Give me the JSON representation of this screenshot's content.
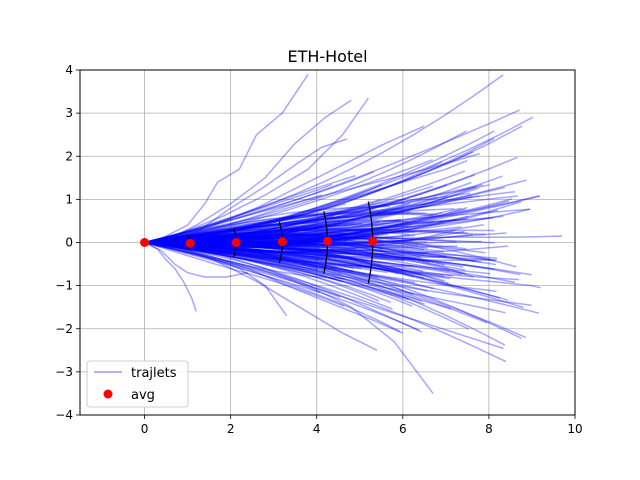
{
  "chart_data": {
    "type": "line",
    "title": "ETH-Hotel",
    "xlabel": "",
    "ylabel": "",
    "xlim": [
      -1.5,
      10
    ],
    "ylim": [
      -4,
      4
    ],
    "xticks": [
      0,
      2,
      4,
      6,
      8,
      10
    ],
    "yticks": [
      -4,
      -3,
      -2,
      -1,
      0,
      1,
      2,
      3,
      4
    ],
    "grid": true,
    "legend": {
      "placement": "lower-left",
      "entries": [
        {
          "label": "trajlets",
          "kind": "line",
          "color": "#0000ff"
        },
        {
          "label": "avg",
          "kind": "marker",
          "color": "#ff0000"
        }
      ]
    },
    "colors": {
      "trajlets": "#0000ff",
      "avg": "#ff0000",
      "arcs": "#000000",
      "grid": "#b0b0b0"
    },
    "avg_points": [
      {
        "x": 0.0,
        "y": 0.0
      },
      {
        "x": 1.06,
        "y": -0.02
      },
      {
        "x": 2.13,
        "y": 0.0
      },
      {
        "x": 3.2,
        "y": 0.02
      },
      {
        "x": 4.25,
        "y": 0.03
      },
      {
        "x": 5.3,
        "y": 0.03
      }
    ],
    "spread_arcs": [
      {
        "x": 1.06,
        "half_width": 0.15
      },
      {
        "x": 2.13,
        "half_width": 0.33
      },
      {
        "x": 3.2,
        "half_width": 0.48
      },
      {
        "x": 4.25,
        "half_width": 0.72
      },
      {
        "x": 5.3,
        "half_width": 0.95
      }
    ],
    "series": [
      {
        "name": "trajlets",
        "x": [
          0,
          0.4,
          1.0,
          1.4,
          1.7,
          2.2,
          2.6,
          3.2,
          3.8
        ],
        "y": [
          0,
          0.1,
          0.4,
          0.9,
          1.4,
          1.7,
          2.5,
          3.0,
          3.9
        ]
      },
      {
        "name": "trajlets",
        "x": [
          0,
          0.6,
          1.2,
          2.0,
          2.8,
          3.5,
          4.2,
          4.8
        ],
        "y": [
          0,
          0.1,
          0.4,
          0.9,
          1.5,
          2.3,
          2.9,
          3.3
        ]
      },
      {
        "name": "trajlets",
        "x": [
          0,
          0.6,
          1.3,
          2.0,
          2.8,
          3.5,
          4.1,
          4.7
        ],
        "y": [
          0,
          0.1,
          0.3,
          0.8,
          1.3,
          1.8,
          2.2,
          2.4
        ]
      },
      {
        "name": "trajlets",
        "x": [
          0,
          0.8,
          1.6,
          2.6,
          3.6,
          4.6,
          5.6,
          6.5
        ],
        "y": [
          0,
          0.1,
          0.4,
          0.8,
          1.3,
          1.8,
          2.3,
          2.7
        ]
      },
      {
        "name": "trajlets",
        "x": [
          0,
          0.8,
          1.8,
          2.8,
          3.8,
          4.6,
          5.2
        ],
        "y": [
          0,
          0.2,
          0.6,
          1.1,
          1.7,
          2.5,
          3.35
        ]
      },
      {
        "name": "trajlets",
        "x": [
          0,
          0.3,
          0.5,
          0.7,
          0.9,
          1.1,
          1.2
        ],
        "y": [
          0,
          -0.15,
          -0.4,
          -0.6,
          -0.9,
          -1.3,
          -1.6
        ]
      },
      {
        "name": "trajlets",
        "x": [
          0,
          0.4,
          0.7,
          1.0,
          1.4,
          1.9,
          2.4
        ],
        "y": [
          0,
          -0.2,
          -0.5,
          -0.7,
          -0.8,
          -0.8,
          -0.7
        ]
      },
      {
        "name": "trajlets",
        "x": [
          0,
          0.8,
          1.6,
          2.6,
          3.6,
          4.6,
          5.4
        ],
        "y": [
          0,
          -0.1,
          -0.4,
          -0.9,
          -1.5,
          -2.1,
          -2.5
        ]
      },
      {
        "name": "trajlets",
        "x": [
          0,
          0.8,
          1.8,
          2.8,
          3.8,
          4.8,
          5.8,
          6.7
        ],
        "y": [
          0,
          -0.1,
          -0.3,
          -0.6,
          -1.0,
          -1.5,
          -2.3,
          -3.5
        ]
      },
      {
        "name": "trajlets",
        "x": [
          0,
          0.7,
          1.5,
          2.4,
          3.3,
          4.3,
          5.3,
          6.0
        ],
        "y": [
          0,
          -0.1,
          -0.3,
          -0.6,
          -1.0,
          -1.4,
          -1.8,
          -2.1
        ]
      },
      {
        "name": "trajlets",
        "x": [
          0,
          0.6,
          1.4,
          2.2,
          2.8,
          3.3
        ],
        "y": [
          0,
          -0.1,
          -0.3,
          -0.6,
          -1.0,
          -1.7
        ]
      },
      {
        "name": "trajlets",
        "x": [
          0,
          1.0,
          2.0,
          3.0,
          4.0,
          5.0,
          6.0,
          7.0,
          8.0,
          9.0,
          9.7
        ],
        "y": [
          0,
          0.0,
          0.05,
          0.08,
          0.1,
          0.1,
          0.1,
          0.12,
          0.12,
          0.13,
          0.15
        ]
      },
      {
        "name": "trajlets",
        "x": [
          0,
          1.0,
          2.0,
          3.0,
          4.0,
          5.0,
          6.0,
          7.0,
          8.0,
          9.0,
          9.2
        ],
        "y": [
          0,
          -0.05,
          -0.1,
          -0.2,
          -0.35,
          -0.5,
          -0.65,
          -0.8,
          -0.9,
          -1.0,
          -1.05
        ]
      },
      {
        "name": "trajlets",
        "x": [
          0,
          1.0,
          2.0,
          3.0,
          4.0,
          5.0,
          6.0,
          7.0,
          7.5
        ],
        "y": [
          0,
          0.1,
          0.3,
          0.5,
          0.8,
          1.1,
          1.4,
          1.7,
          1.9
        ]
      }
    ]
  }
}
